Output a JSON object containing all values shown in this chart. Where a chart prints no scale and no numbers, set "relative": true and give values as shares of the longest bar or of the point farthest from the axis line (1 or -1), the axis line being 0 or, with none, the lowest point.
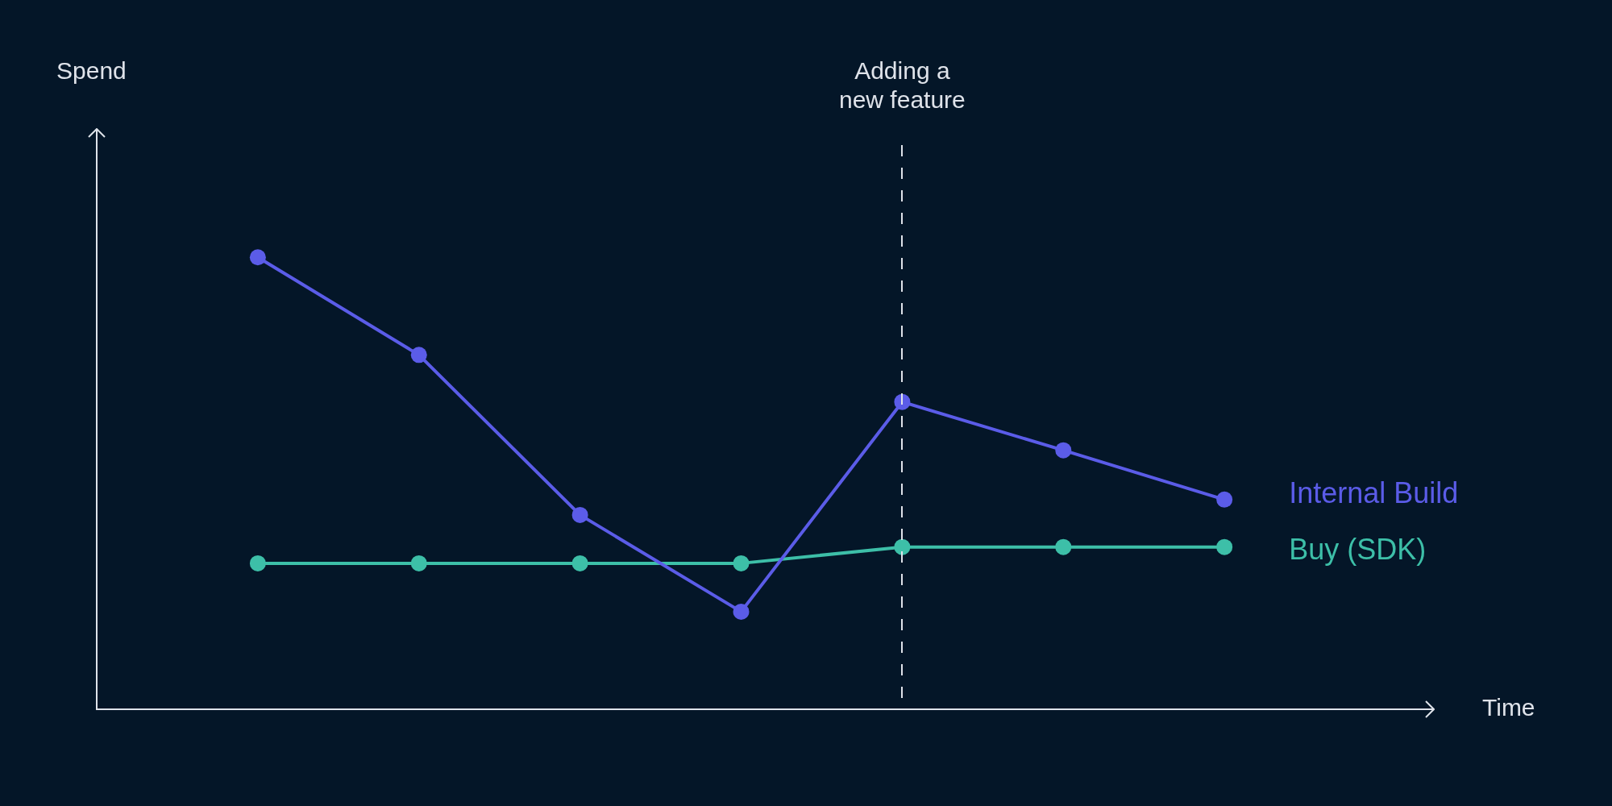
{
  "chart_data": {
    "type": "line",
    "relative": true,
    "xlabel": "Time",
    "categories": [
      null,
      null,
      null,
      null,
      null,
      null,
      null
    ],
    "series": [
      {
        "name": "Internal Build",
        "color": "#5b5ce8",
        "values": [
          1,
          0.784,
          0.43,
          0.216,
          0.68,
          0.573,
          0.464
        ]
      },
      {
        "name": "Buy (SDK)",
        "color": "#3dbfa8",
        "values": [
          0.323,
          0.323,
          0.323,
          0.323,
          0.359,
          0.359,
          0.359
        ]
      }
    ],
    "annotations": [
      "Spend",
      "Adding a new feature"
    ],
    "marker": "circle",
    "line_style": "solid",
    "legend": false
  }
}
